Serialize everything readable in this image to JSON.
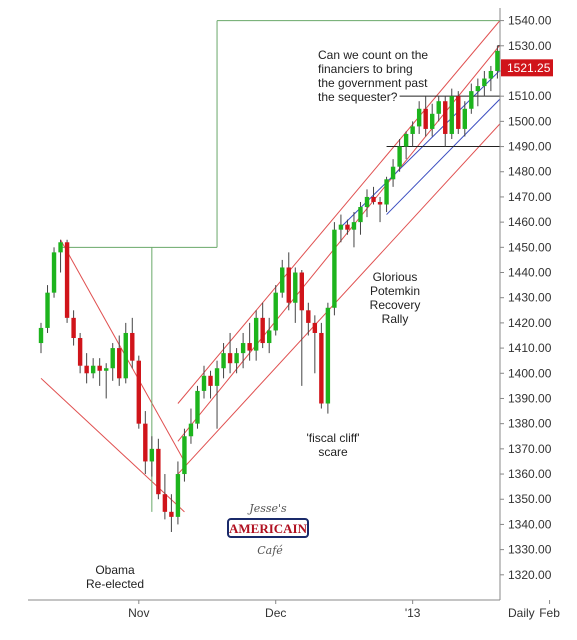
{
  "chart_data": {
    "type": "candlestick",
    "ylim": [
      1310,
      1545
    ],
    "y_ticks": [
      1320,
      1330,
      1340,
      1350,
      1360,
      1370,
      1380,
      1390,
      1400,
      1410,
      1420,
      1430,
      1440,
      1450,
      1460,
      1470,
      1480,
      1490,
      1500,
      1510,
      1520,
      1530,
      1540
    ],
    "y_tick_labels": [
      "1320.00",
      "1330.00",
      "1340.00",
      "1350.00",
      "1360.00",
      "1370.00",
      "1380.00",
      "1390.00",
      "1400.00",
      "1410.00",
      "1420.00",
      "1430.00",
      "1440.00",
      "1450.00",
      "1460.00",
      "1470.00",
      "1480.00",
      "1490.00",
      "1500.00",
      "1510.00",
      "1520.00",
      "1530.00",
      "1540.00"
    ],
    "x_labels": [
      {
        "label": "Nov",
        "index": 15
      },
      {
        "label": "Dec",
        "index": 36
      },
      {
        "label": "'13",
        "index": 57
      },
      {
        "label": "Feb",
        "index": 78
      }
    ],
    "period_label": "Daily",
    "last_price": 1521.25,
    "last_price_label": "1521.25",
    "colors": {
      "up": "#1db41d",
      "down": "#d0141a",
      "price_tag": "#d0141a",
      "channel": "#e05050",
      "wedge": "#3a4cc0",
      "guide": "#6aa86a"
    },
    "candles": [
      {
        "o": 1412,
        "h": 1420,
        "l": 1408,
        "c": 1418
      },
      {
        "o": 1418,
        "h": 1435,
        "l": 1416,
        "c": 1432
      },
      {
        "o": 1432,
        "h": 1450,
        "l": 1430,
        "c": 1448
      },
      {
        "o": 1448,
        "h": 1453,
        "l": 1440,
        "c": 1452
      },
      {
        "o": 1452,
        "h": 1453,
        "l": 1420,
        "c": 1422
      },
      {
        "o": 1422,
        "h": 1425,
        "l": 1411,
        "c": 1414
      },
      {
        "o": 1414,
        "h": 1416,
        "l": 1400,
        "c": 1403
      },
      {
        "o": 1403,
        "h": 1408,
        "l": 1396,
        "c": 1400
      },
      {
        "o": 1400,
        "h": 1406,
        "l": 1398,
        "c": 1403
      },
      {
        "o": 1403,
        "h": 1406,
        "l": 1395,
        "c": 1401
      },
      {
        "o": 1401,
        "h": 1404,
        "l": 1390,
        "c": 1402
      },
      {
        "o": 1402,
        "h": 1412,
        "l": 1397,
        "c": 1410
      },
      {
        "o": 1410,
        "h": 1415,
        "l": 1395,
        "c": 1398
      },
      {
        "o": 1398,
        "h": 1420,
        "l": 1396,
        "c": 1416
      },
      {
        "o": 1416,
        "h": 1422,
        "l": 1402,
        "c": 1405
      },
      {
        "o": 1405,
        "h": 1407,
        "l": 1378,
        "c": 1380
      },
      {
        "o": 1380,
        "h": 1385,
        "l": 1360,
        "c": 1365
      },
      {
        "o": 1365,
        "h": 1375,
        "l": 1359,
        "c": 1370
      },
      {
        "o": 1370,
        "h": 1374,
        "l": 1350,
        "c": 1352
      },
      {
        "o": 1352,
        "h": 1360,
        "l": 1342,
        "c": 1345
      },
      {
        "o": 1345,
        "h": 1352,
        "l": 1337,
        "c": 1343
      },
      {
        "o": 1343,
        "h": 1365,
        "l": 1340,
        "c": 1360
      },
      {
        "o": 1360,
        "h": 1378,
        "l": 1357,
        "c": 1375
      },
      {
        "o": 1375,
        "h": 1386,
        "l": 1372,
        "c": 1380
      },
      {
        "o": 1380,
        "h": 1395,
        "l": 1378,
        "c": 1393
      },
      {
        "o": 1393,
        "h": 1403,
        "l": 1390,
        "c": 1399
      },
      {
        "o": 1399,
        "h": 1401,
        "l": 1390,
        "c": 1395
      },
      {
        "o": 1395,
        "h": 1405,
        "l": 1378,
        "c": 1402
      },
      {
        "o": 1402,
        "h": 1412,
        "l": 1398,
        "c": 1408
      },
      {
        "o": 1408,
        "h": 1416,
        "l": 1400,
        "c": 1404
      },
      {
        "o": 1404,
        "h": 1410,
        "l": 1400,
        "c": 1408
      },
      {
        "o": 1408,
        "h": 1416,
        "l": 1402,
        "c": 1412
      },
      {
        "o": 1412,
        "h": 1420,
        "l": 1405,
        "c": 1409
      },
      {
        "o": 1409,
        "h": 1425,
        "l": 1405,
        "c": 1422
      },
      {
        "o": 1422,
        "h": 1428,
        "l": 1410,
        "c": 1412
      },
      {
        "o": 1412,
        "h": 1422,
        "l": 1408,
        "c": 1417
      },
      {
        "o": 1417,
        "h": 1435,
        "l": 1415,
        "c": 1432
      },
      {
        "o": 1432,
        "h": 1445,
        "l": 1430,
        "c": 1442
      },
      {
        "o": 1442,
        "h": 1448,
        "l": 1425,
        "c": 1428
      },
      {
        "o": 1428,
        "h": 1442,
        "l": 1420,
        "c": 1440
      },
      {
        "o": 1440,
        "h": 1441,
        "l": 1395,
        "c": 1425
      },
      {
        "o": 1425,
        "h": 1428,
        "l": 1415,
        "c": 1420
      },
      {
        "o": 1420,
        "h": 1423,
        "l": 1400,
        "c": 1416
      },
      {
        "o": 1416,
        "h": 1420,
        "l": 1386,
        "c": 1388
      },
      {
        "o": 1388,
        "h": 1428,
        "l": 1384,
        "c": 1426
      },
      {
        "o": 1426,
        "h": 1460,
        "l": 1423,
        "c": 1457
      },
      {
        "o": 1457,
        "h": 1463,
        "l": 1452,
        "c": 1459
      },
      {
        "o": 1459,
        "h": 1461,
        "l": 1455,
        "c": 1457
      },
      {
        "o": 1457,
        "h": 1464,
        "l": 1450,
        "c": 1460
      },
      {
        "o": 1460,
        "h": 1468,
        "l": 1455,
        "c": 1466
      },
      {
        "o": 1466,
        "h": 1473,
        "l": 1462,
        "c": 1470
      },
      {
        "o": 1470,
        "h": 1474,
        "l": 1467,
        "c": 1468
      },
      {
        "o": 1468,
        "h": 1470,
        "l": 1460,
        "c": 1467
      },
      {
        "o": 1467,
        "h": 1478,
        "l": 1464,
        "c": 1477
      },
      {
        "o": 1477,
        "h": 1485,
        "l": 1474,
        "c": 1482
      },
      {
        "o": 1482,
        "h": 1493,
        "l": 1480,
        "c": 1490
      },
      {
        "o": 1490,
        "h": 1496,
        "l": 1485,
        "c": 1495
      },
      {
        "o": 1495,
        "h": 1500,
        "l": 1490,
        "c": 1498
      },
      {
        "o": 1498,
        "h": 1508,
        "l": 1495,
        "c": 1505
      },
      {
        "o": 1505,
        "h": 1510,
        "l": 1494,
        "c": 1497
      },
      {
        "o": 1497,
        "h": 1507,
        "l": 1494,
        "c": 1503
      },
      {
        "o": 1503,
        "h": 1510,
        "l": 1500,
        "c": 1508
      },
      {
        "o": 1508,
        "h": 1510,
        "l": 1490,
        "c": 1495
      },
      {
        "o": 1495,
        "h": 1513,
        "l": 1493,
        "c": 1510
      },
      {
        "o": 1510,
        "h": 1512,
        "l": 1495,
        "c": 1497
      },
      {
        "o": 1497,
        "h": 1508,
        "l": 1494,
        "c": 1505
      },
      {
        "o": 1505,
        "h": 1515,
        "l": 1503,
        "c": 1512
      },
      {
        "o": 1512,
        "h": 1517,
        "l": 1506,
        "c": 1514
      },
      {
        "o": 1514,
        "h": 1520,
        "l": 1510,
        "c": 1517
      },
      {
        "o": 1517,
        "h": 1522,
        "l": 1512,
        "c": 1520
      },
      {
        "o": 1520,
        "h": 1530,
        "l": 1517,
        "c": 1528
      },
      {
        "o": 1528,
        "h": 1530,
        "l": 1519,
        "c": 1521.25
      }
    ]
  },
  "annotations": {
    "question": "Can we count on the\nfinanciers to bring\nthe government past\nthe sequester?",
    "glorious": "Glorious\nPotemkin\nRecovery\nRally",
    "fiscal": "'fiscal cliff'\nscare",
    "obama": "Obama\nRe-elected"
  },
  "logo": {
    "top": "Jesse's",
    "middle": "AMERICAIN",
    "bottom": "Café"
  }
}
